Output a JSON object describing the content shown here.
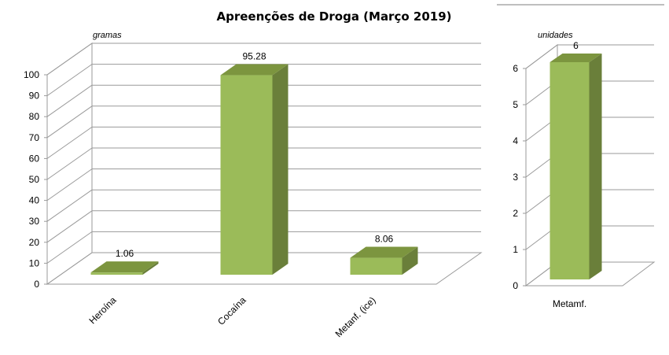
{
  "title": "Apreenções de Droga (Março 2019)",
  "colors": {
    "bar_front": "#9bbb59",
    "bar_side": "#6a7f3a",
    "bar_top": "#7c953f",
    "grid": "#9a9a9a"
  },
  "chart_data": [
    {
      "type": "bar",
      "unit_label": "gramas",
      "categories": [
        "Heroína",
        "Cocaína",
        "Metanf. (ice)"
      ],
      "values": [
        1.06,
        95.28,
        8.06
      ],
      "data_labels": [
        "1.06",
        "95.28",
        "8.06"
      ],
      "ylim": [
        0,
        100
      ],
      "yticks": [
        "0",
        "10",
        "20",
        "30",
        "40",
        "50",
        "60",
        "70",
        "80",
        "90",
        "100"
      ],
      "grid": true
    },
    {
      "type": "bar",
      "unit_label": "unidades",
      "categories": [
        "Metamf."
      ],
      "values": [
        6
      ],
      "data_labels": [
        "6"
      ],
      "ylim": [
        0,
        6
      ],
      "yticks": [
        "0",
        "1",
        "2",
        "3",
        "4",
        "5",
        "6"
      ],
      "grid": true
    }
  ]
}
